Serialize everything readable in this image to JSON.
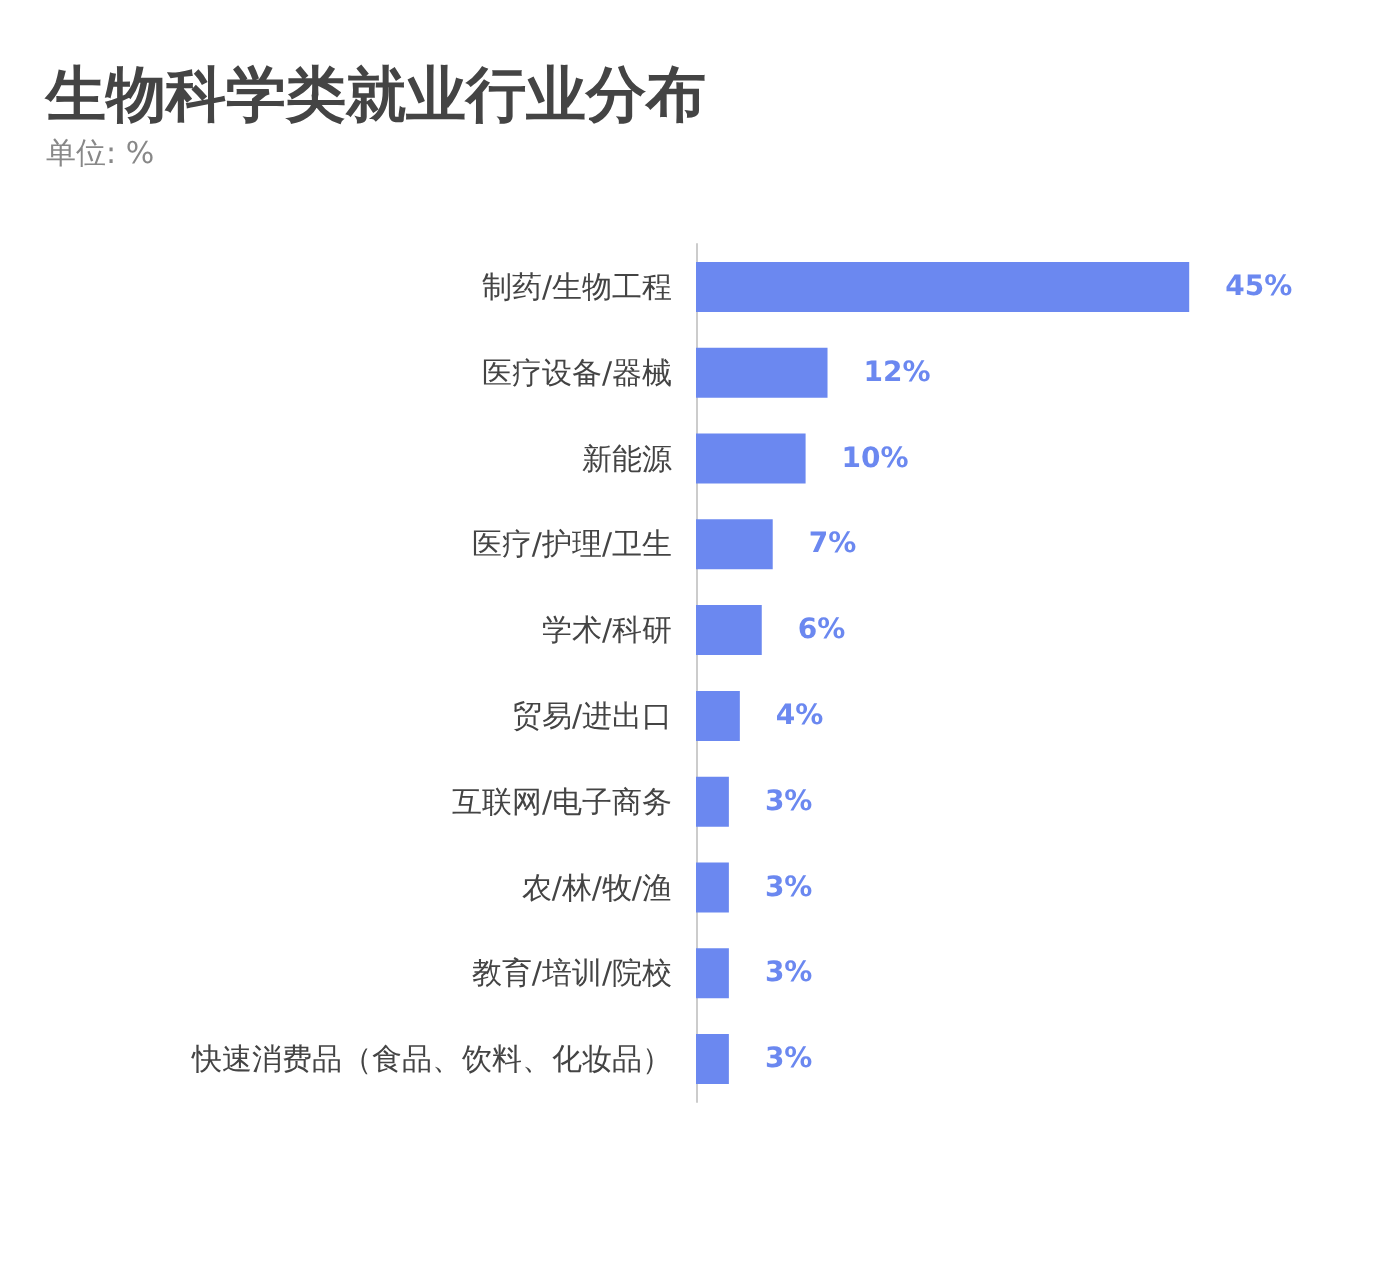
{
  "chart_data": {
    "type": "bar",
    "orientation": "horizontal",
    "title": "生物科学类就业行业分布",
    "subtitle": "单位: %",
    "categories": [
      "制药/生物工程",
      "医疗设备/器械",
      "新能源",
      "医疗/护理/卫生",
      "学术/科研",
      "贸易/进出口",
      "互联网/电子商务",
      "农/林/牧/渔",
      "教育/培训/院校",
      "快速消费品（食品、饮料、化妆品）"
    ],
    "values": [
      45,
      12,
      10,
      7,
      6,
      4,
      3,
      3,
      3,
      3
    ],
    "value_labels": [
      "45%",
      "12%",
      "10%",
      "7%",
      "6%",
      "4%",
      "3%",
      "3%",
      "3%",
      "3%"
    ],
    "color": "#6b88f0"
  }
}
